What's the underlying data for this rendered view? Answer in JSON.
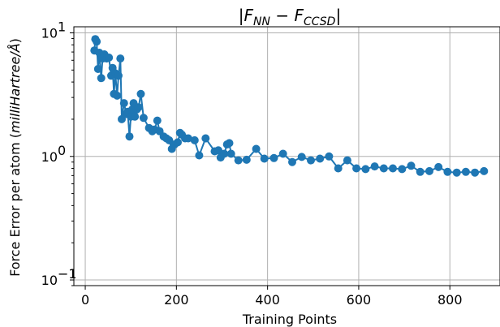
{
  "chart_data": {
    "type": "line",
    "title": "|F_NN − F_CCSD|",
    "title_parts": {
      "bar_left": "|",
      "f1": "F",
      "sub1": "NN",
      "minus": " − ",
      "f2": "F",
      "sub2": "CCSD",
      "bar_right": "|"
    },
    "xlabel": "Training Points",
    "ylabel_prefix": "Force Error per atom (",
    "ylabel_unit": "milliHartree/Å",
    "ylabel_suffix": ")",
    "xlim": [
      -25,
      910
    ],
    "ylim": [
      0.09,
      11.2
    ],
    "y_scale": "log",
    "grid": true,
    "x_ticks": [
      {
        "value": 0,
        "label": "0"
      },
      {
        "value": 200,
        "label": "200"
      },
      {
        "value": 400,
        "label": "400"
      },
      {
        "value": 600,
        "label": "600"
      },
      {
        "value": 800,
        "label": "800"
      }
    ],
    "y_ticks": [
      {
        "value": 0.1,
        "base": "10",
        "exp": "−1"
      },
      {
        "value": 1,
        "base": "10",
        "exp": "0"
      },
      {
        "value": 10,
        "base": "10",
        "exp": "1"
      }
    ],
    "series": [
      {
        "color": "#1f77b4",
        "x": [
          20,
          22,
          25,
          28,
          31,
          35,
          38,
          42,
          47,
          52,
          57,
          60,
          63,
          66,
          70,
          73,
          77,
          80,
          85,
          90,
          93,
          97,
          100,
          103,
          106,
          109,
          113,
          117,
          122,
          128,
          140,
          147,
          152,
          158,
          163,
          172,
          178,
          184,
          190,
          196,
          203,
          208,
          212,
          219,
          226,
          240,
          250,
          264,
          284,
          292,
          297,
          305,
          311,
          316,
          320,
          336,
          354,
          375,
          393,
          414,
          434,
          454,
          475,
          495,
          515,
          535,
          555,
          575,
          595,
          615,
          635,
          655,
          675,
          695,
          715,
          735,
          755,
          775,
          795,
          815,
          835,
          855,
          875
        ],
        "y": [
          7.2,
          8.9,
          8.5,
          5.1,
          6.9,
          4.3,
          6.2,
          6.7,
          6.2,
          6.3,
          4.5,
          5.2,
          3.2,
          4.7,
          3.1,
          4.5,
          6.2,
          2.0,
          2.7,
          2.2,
          2.3,
          1.45,
          2.1,
          2.4,
          2.7,
          2.1,
          2.4,
          2.5,
          3.2,
          2.05,
          1.7,
          1.6,
          1.65,
          1.95,
          1.6,
          1.45,
          1.4,
          1.35,
          1.15,
          1.25,
          1.3,
          1.55,
          1.5,
          1.4,
          1.4,
          1.35,
          1.02,
          1.4,
          1.1,
          1.12,
          0.98,
          1.05,
          1.25,
          1.28,
          1.05,
          0.93,
          0.94,
          1.15,
          0.96,
          0.97,
          1.05,
          0.9,
          0.99,
          0.93,
          0.96,
          1.0,
          0.8,
          0.93,
          0.8,
          0.79,
          0.83,
          0.8,
          0.8,
          0.79,
          0.84,
          0.75,
          0.76,
          0.82,
          0.75,
          0.74,
          0.75,
          0.74,
          0.76
        ]
      }
    ]
  }
}
